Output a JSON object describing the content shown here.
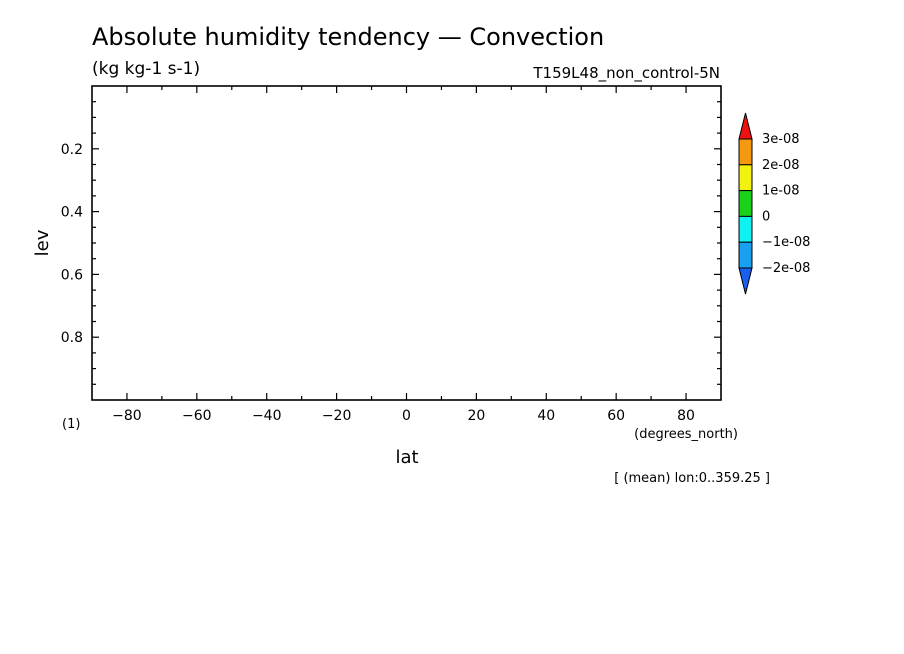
{
  "chart_data": {
    "type": "heatmap",
    "title": "Absolute humidity tendency — Convection",
    "units": "(kg kg-1 s-1)",
    "run_label": "T159L48_non_control-5N",
    "xlabel": "lat",
    "x_units": "(degrees_north)",
    "ylabel": "lev",
    "y_units": "(1)",
    "xlim": [
      -90,
      90
    ],
    "ylim": [
      1.0,
      0.0
    ],
    "x_ticks": [
      -80,
      -60,
      -40,
      -20,
      0,
      20,
      40,
      60,
      80
    ],
    "y_ticks": [
      0.2,
      0.4,
      0.6,
      0.8
    ],
    "grid": false,
    "footer": "[ (mean) lon:0..359.25 ]",
    "values": [],
    "colorbar": {
      "placement": "right",
      "levels": [
        "3e-08",
        "2e-08",
        "1e-08",
        "0",
        "-1e-08",
        "-2e-08"
      ],
      "colors": [
        "#ee1111",
        "#f59a10",
        "#f2f20f",
        "#1ad21a",
        "#10f2f2",
        "#1aa0f0",
        "#1a60f0"
      ]
    }
  }
}
